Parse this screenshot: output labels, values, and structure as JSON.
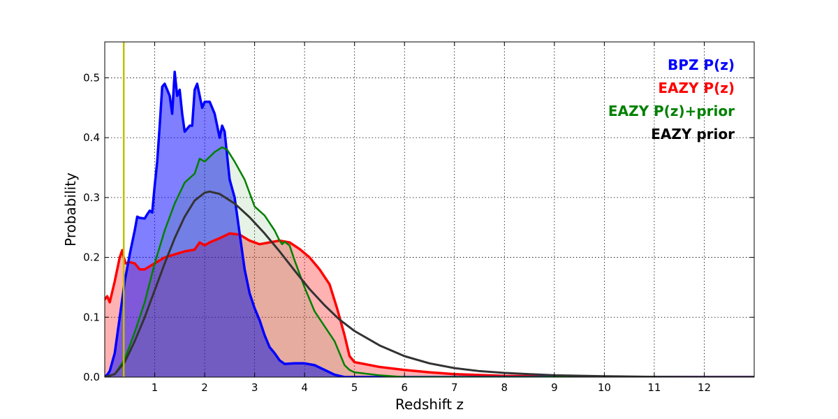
{
  "chart_data": {
    "type": "area",
    "xlabel": "Redshift z",
    "ylabel": "Probability",
    "xlim": [
      0,
      13
    ],
    "ylim": [
      0,
      0.56
    ],
    "xticks": [
      1,
      2,
      3,
      4,
      5,
      6,
      7,
      8,
      9,
      10,
      11,
      12
    ],
    "yticks": [
      0.0,
      0.1,
      0.2,
      0.3,
      0.4,
      0.5
    ],
    "ytick_labels": [
      "0.0",
      "0.1",
      "0.2",
      "0.3",
      "0.4",
      "0.5"
    ],
    "grid": true,
    "legend_position": "top-right",
    "marker_line": {
      "x": 0.38,
      "color": "#bfbf00"
    },
    "series": [
      {
        "name": "EAZY P(z)",
        "color": "#ff0000",
        "fill": "#ff0000",
        "fill_opacity": 0.3,
        "line_width": 3.5,
        "points": [
          [
            0,
            0.13
          ],
          [
            0.05,
            0.135
          ],
          [
            0.1,
            0.125
          ],
          [
            0.2,
            0.16
          ],
          [
            0.3,
            0.2
          ],
          [
            0.35,
            0.212
          ],
          [
            0.38,
            0.2
          ],
          [
            0.42,
            0.19
          ],
          [
            0.5,
            0.192
          ],
          [
            0.6,
            0.19
          ],
          [
            0.7,
            0.18
          ],
          [
            0.8,
            0.18
          ],
          [
            0.9,
            0.185
          ],
          [
            1.0,
            0.19
          ],
          [
            1.2,
            0.2
          ],
          [
            1.4,
            0.205
          ],
          [
            1.6,
            0.21
          ],
          [
            1.8,
            0.213
          ],
          [
            1.9,
            0.225
          ],
          [
            2.0,
            0.22
          ],
          [
            2.1,
            0.225
          ],
          [
            2.3,
            0.232
          ],
          [
            2.5,
            0.24
          ],
          [
            2.7,
            0.238
          ],
          [
            2.9,
            0.228
          ],
          [
            3.1,
            0.222
          ],
          [
            3.3,
            0.225
          ],
          [
            3.5,
            0.228
          ],
          [
            3.7,
            0.225
          ],
          [
            3.9,
            0.214
          ],
          [
            4.1,
            0.2
          ],
          [
            4.3,
            0.18
          ],
          [
            4.5,
            0.155
          ],
          [
            4.65,
            0.115
          ],
          [
            4.8,
            0.07
          ],
          [
            4.9,
            0.035
          ],
          [
            5.0,
            0.025
          ],
          [
            5.5,
            0.017
          ],
          [
            6.0,
            0.012
          ],
          [
            6.5,
            0.008
          ],
          [
            7.0,
            0.005
          ],
          [
            8.0,
            0.002
          ],
          [
            9.0,
            0.001
          ],
          [
            10.0,
            0.0
          ],
          [
            13.0,
            0.0
          ]
        ]
      },
      {
        "name": "BPZ P(z)",
        "color": "#0000ff",
        "fill": "#0000ff",
        "fill_opacity": 0.5,
        "line_width": 3.5,
        "points": [
          [
            0,
            0.0
          ],
          [
            0.05,
            0.004
          ],
          [
            0.1,
            0.01
          ],
          [
            0.2,
            0.04
          ],
          [
            0.3,
            0.1
          ],
          [
            0.4,
            0.16
          ],
          [
            0.5,
            0.205
          ],
          [
            0.6,
            0.245
          ],
          [
            0.65,
            0.268
          ],
          [
            0.7,
            0.266
          ],
          [
            0.8,
            0.265
          ],
          [
            0.85,
            0.272
          ],
          [
            0.9,
            0.278
          ],
          [
            0.95,
            0.275
          ],
          [
            1.0,
            0.32
          ],
          [
            1.05,
            0.36
          ],
          [
            1.1,
            0.42
          ],
          [
            1.15,
            0.485
          ],
          [
            1.2,
            0.49
          ],
          [
            1.25,
            0.48
          ],
          [
            1.3,
            0.47
          ],
          [
            1.35,
            0.44
          ],
          [
            1.4,
            0.51
          ],
          [
            1.45,
            0.47
          ],
          [
            1.5,
            0.48
          ],
          [
            1.55,
            0.44
          ],
          [
            1.6,
            0.41
          ],
          [
            1.7,
            0.42
          ],
          [
            1.75,
            0.42
          ],
          [
            1.8,
            0.48
          ],
          [
            1.85,
            0.49
          ],
          [
            1.9,
            0.47
          ],
          [
            1.95,
            0.45
          ],
          [
            2.0,
            0.46
          ],
          [
            2.1,
            0.46
          ],
          [
            2.2,
            0.44
          ],
          [
            2.3,
            0.4
          ],
          [
            2.35,
            0.42
          ],
          [
            2.4,
            0.41
          ],
          [
            2.5,
            0.33
          ],
          [
            2.6,
            0.3
          ],
          [
            2.7,
            0.24
          ],
          [
            2.8,
            0.18
          ],
          [
            2.9,
            0.14
          ],
          [
            3.0,
            0.115
          ],
          [
            3.1,
            0.095
          ],
          [
            3.2,
            0.07
          ],
          [
            3.3,
            0.05
          ],
          [
            3.4,
            0.04
          ],
          [
            3.5,
            0.028
          ],
          [
            3.6,
            0.022
          ],
          [
            3.8,
            0.023
          ],
          [
            4.0,
            0.023
          ],
          [
            4.2,
            0.02
          ],
          [
            4.4,
            0.012
          ],
          [
            4.6,
            0.004
          ],
          [
            4.8,
            0.0
          ],
          [
            13.0,
            0.0
          ]
        ]
      },
      {
        "name": "EAZY P(z)+prior",
        "color": "#008000",
        "fill": "#008000",
        "fill_opacity": 0.1,
        "line_width": 2.5,
        "points": [
          [
            0,
            0.0
          ],
          [
            0.2,
            0.005
          ],
          [
            0.4,
            0.03
          ],
          [
            0.6,
            0.075
          ],
          [
            0.8,
            0.125
          ],
          [
            1.0,
            0.19
          ],
          [
            1.2,
            0.245
          ],
          [
            1.4,
            0.29
          ],
          [
            1.6,
            0.325
          ],
          [
            1.8,
            0.34
          ],
          [
            1.9,
            0.365
          ],
          [
            2.0,
            0.36
          ],
          [
            2.1,
            0.368
          ],
          [
            2.2,
            0.376
          ],
          [
            2.35,
            0.384
          ],
          [
            2.45,
            0.38
          ],
          [
            2.6,
            0.36
          ],
          [
            2.8,
            0.33
          ],
          [
            3.0,
            0.285
          ],
          [
            3.2,
            0.27
          ],
          [
            3.4,
            0.245
          ],
          [
            3.5,
            0.228
          ],
          [
            3.55,
            0.222
          ],
          [
            3.6,
            0.226
          ],
          [
            3.7,
            0.22
          ],
          [
            3.8,
            0.195
          ],
          [
            4.0,
            0.15
          ],
          [
            4.2,
            0.11
          ],
          [
            4.4,
            0.085
          ],
          [
            4.6,
            0.06
          ],
          [
            4.8,
            0.02
          ],
          [
            4.9,
            0.012
          ],
          [
            5.0,
            0.008
          ],
          [
            5.5,
            0.003
          ],
          [
            6.0,
            0.0
          ],
          [
            13.0,
            0.0
          ]
        ]
      },
      {
        "name": "EAZY prior",
        "color": "#333333",
        "fill": "none",
        "fill_opacity": 0,
        "line_width": 3,
        "points": [
          [
            0.0,
            0.0
          ],
          [
            0.2,
            0.005
          ],
          [
            0.4,
            0.025
          ],
          [
            0.6,
            0.06
          ],
          [
            0.8,
            0.1
          ],
          [
            1.0,
            0.145
          ],
          [
            1.2,
            0.19
          ],
          [
            1.4,
            0.232
          ],
          [
            1.6,
            0.268
          ],
          [
            1.8,
            0.295
          ],
          [
            2.0,
            0.308
          ],
          [
            2.1,
            0.31
          ],
          [
            2.3,
            0.306
          ],
          [
            2.6,
            0.29
          ],
          [
            2.9,
            0.267
          ],
          [
            3.2,
            0.24
          ],
          [
            3.5,
            0.21
          ],
          [
            3.8,
            0.178
          ],
          [
            4.1,
            0.147
          ],
          [
            4.4,
            0.12
          ],
          [
            4.7,
            0.096
          ],
          [
            5.0,
            0.077
          ],
          [
            5.5,
            0.053
          ],
          [
            6.0,
            0.035
          ],
          [
            6.5,
            0.023
          ],
          [
            7.0,
            0.015
          ],
          [
            7.5,
            0.01
          ],
          [
            8.0,
            0.007
          ],
          [
            8.5,
            0.005
          ],
          [
            9.0,
            0.003
          ],
          [
            10.0,
            0.0015
          ],
          [
            11.0,
            0.0005
          ],
          [
            12.0,
            0.0
          ],
          [
            13.0,
            0.0
          ]
        ]
      }
    ],
    "legend": [
      {
        "label": "BPZ P(z)",
        "color": "#0000ff"
      },
      {
        "label": "EAZY P(z)",
        "color": "#ff0000"
      },
      {
        "label": "EAZY P(z)+prior",
        "color": "#008000"
      },
      {
        "label": "EAZY prior",
        "color": "#000000"
      }
    ]
  }
}
